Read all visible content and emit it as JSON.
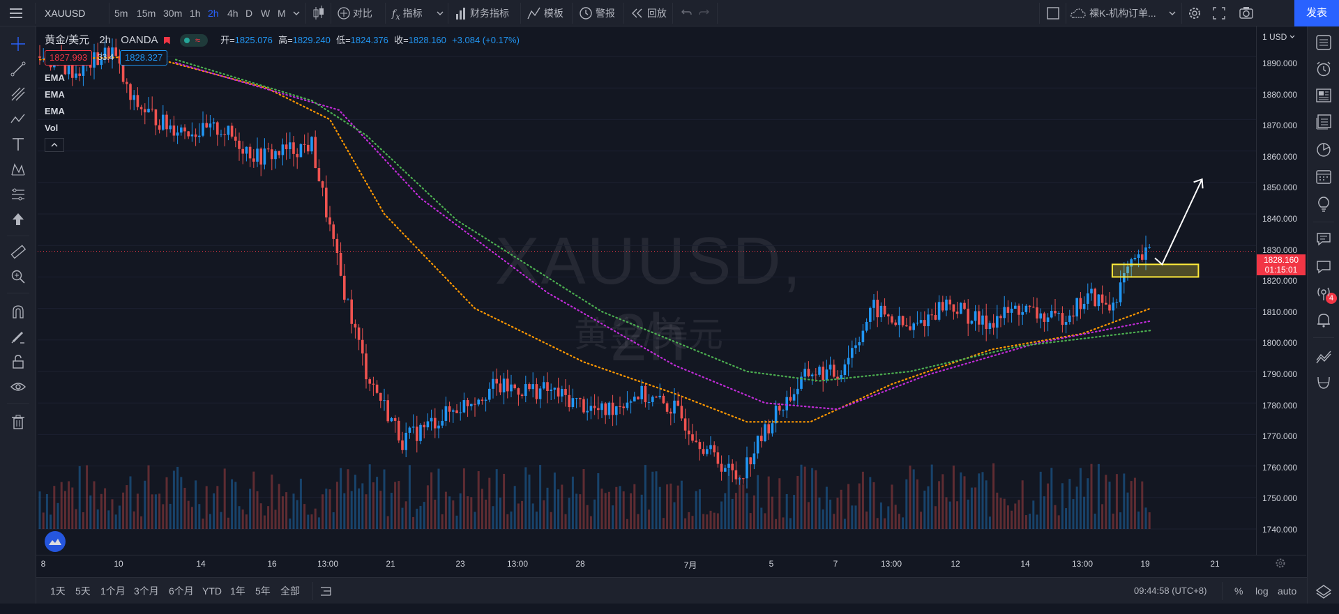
{
  "topbar": {
    "menu_icon": "hamburger-icon",
    "symbol": "XAUUSD",
    "intervals": [
      "5m",
      "15m",
      "30m",
      "1h",
      "2h",
      "4h",
      "D",
      "W",
      "M"
    ],
    "active_interval": "2h",
    "compare": "对比",
    "indicators": "指标",
    "financials": "财务指标",
    "templates": "模板",
    "alert": "警报",
    "replay": "回放",
    "layout_name": "裸K-机构订单...",
    "publish": "发表"
  },
  "legend": {
    "title": "黄金/美元",
    "interval": "2h",
    "source": "OANDA",
    "open_label": "开=",
    "open": "1825.076",
    "high_label": "高=",
    "high": "1829.240",
    "low_label": "低=",
    "low": "1824.376",
    "close_label": "收=",
    "close": "1828.160",
    "change": "+3.084 (+0.17%)",
    "bid": "1827.993",
    "spread": "33.4",
    "ask": "1828.327",
    "indicators": [
      "EMA",
      "EMA",
      "EMA",
      "Vol"
    ]
  },
  "watermark": {
    "symbol": "XAUUSD, 2h",
    "name": "黄金/美元"
  },
  "price_scale": {
    "currency": "1 USD",
    "labels": [
      "1890.000",
      "1880.000",
      "1870.000",
      "1860.000",
      "1850.000",
      "1840.000",
      "1830.000",
      "1820.000",
      "1810.000",
      "1800.000",
      "1790.000",
      "1780.000",
      "1770.000",
      "1760.000",
      "1750.000",
      "1740.000"
    ],
    "current_price": "1828.160",
    "countdown": "01:15:01"
  },
  "time_scale": {
    "labels": [
      "8",
      "10",
      "14",
      "16",
      "13:00",
      "21",
      "23",
      "13:00",
      "28",
      "7月",
      "5",
      "7",
      "13:00",
      "12",
      "14",
      "13:00",
      "19",
      "21"
    ]
  },
  "bottombar": {
    "ranges": [
      "1天",
      "5天",
      "1个月",
      "3个月",
      "6个月",
      "YTD",
      "1年",
      "5年",
      "全部"
    ],
    "time": "09:44:58 (UTC+8)",
    "percent": "%",
    "log": "log",
    "auto": "auto"
  },
  "right_toolbar": {
    "badge": "4"
  },
  "colors": {
    "bull": "#2196f3",
    "bear": "#ef5350",
    "ema_fast": "#ff9800",
    "ema_mid": "#c02cd8",
    "ema_slow": "#4caf50",
    "highlight": "#ffeb3b"
  },
  "chart_data": {
    "type": "candlestick",
    "symbol": "XAUUSD",
    "interval": "2h",
    "ylim": [
      1735,
      1895
    ],
    "price_line": 1828.16,
    "anchors": [
      {
        "t": 0,
        "close": 1890
      },
      {
        "t": 40,
        "close": 1885
      },
      {
        "t": 80,
        "close": 1892
      },
      {
        "t": 100,
        "close": 1876
      },
      {
        "t": 140,
        "close": 1868
      },
      {
        "t": 180,
        "close": 1866
      },
      {
        "t": 200,
        "close": 1867
      },
      {
        "t": 240,
        "close": 1858
      },
      {
        "t": 300,
        "close": 1862
      },
      {
        "t": 330,
        "close": 1822
      },
      {
        "t": 360,
        "close": 1790
      },
      {
        "t": 400,
        "close": 1768
      },
      {
        "t": 440,
        "close": 1775
      },
      {
        "t": 500,
        "close": 1785
      },
      {
        "t": 560,
        "close": 1784
      },
      {
        "t": 620,
        "close": 1777
      },
      {
        "t": 660,
        "close": 1783
      },
      {
        "t": 700,
        "close": 1778
      },
      {
        "t": 740,
        "close": 1764
      },
      {
        "t": 770,
        "close": 1756
      },
      {
        "t": 810,
        "close": 1776
      },
      {
        "t": 850,
        "close": 1790
      },
      {
        "t": 880,
        "close": 1789
      },
      {
        "t": 920,
        "close": 1810
      },
      {
        "t": 960,
        "close": 1803
      },
      {
        "t": 1000,
        "close": 1812
      },
      {
        "t": 1040,
        "close": 1805
      },
      {
        "t": 1080,
        "close": 1810
      },
      {
        "t": 1120,
        "close": 1806
      },
      {
        "t": 1160,
        "close": 1814
      },
      {
        "t": 1180,
        "close": 1810
      },
      {
        "t": 1200,
        "close": 1822
      },
      {
        "t": 1225,
        "close": 1828
      }
    ],
    "ema": [
      {
        "name": "EMA",
        "values": [
          [
            0,
            1889
          ],
          [
            120,
            1890
          ],
          [
            250,
            1880
          ],
          [
            320,
            1870
          ],
          [
            380,
            1840
          ],
          [
            480,
            1810
          ],
          [
            600,
            1793
          ],
          [
            700,
            1783
          ],
          [
            780,
            1774
          ],
          [
            850,
            1774
          ],
          [
            940,
            1786
          ],
          [
            1050,
            1797
          ],
          [
            1150,
            1802
          ],
          [
            1225,
            1810
          ]
        ]
      },
      {
        "name": "EMA",
        "values": [
          [
            150,
            1888
          ],
          [
            270,
            1878
          ],
          [
            330,
            1873
          ],
          [
            420,
            1845
          ],
          [
            560,
            1815
          ],
          [
            700,
            1792
          ],
          [
            800,
            1780
          ],
          [
            880,
            1778
          ],
          [
            980,
            1789
          ],
          [
            1100,
            1799
          ],
          [
            1225,
            1806
          ]
        ]
      },
      {
        "name": "EMA",
        "values": [
          [
            150,
            1889
          ],
          [
            300,
            1876
          ],
          [
            360,
            1865
          ],
          [
            460,
            1838
          ],
          [
            620,
            1809
          ],
          [
            780,
            1790
          ],
          [
            860,
            1787
          ],
          [
            960,
            1790
          ],
          [
            1080,
            1798
          ],
          [
            1225,
            1803
          ]
        ]
      }
    ],
    "zone": {
      "from_t": 1183,
      "to_t": 1278,
      "low": 1820,
      "high": 1824
    },
    "arrow": {
      "from": [
        1230,
        1826
      ],
      "via": [
        1238,
        1824
      ],
      "to": [
        1282,
        1851
      ]
    }
  }
}
